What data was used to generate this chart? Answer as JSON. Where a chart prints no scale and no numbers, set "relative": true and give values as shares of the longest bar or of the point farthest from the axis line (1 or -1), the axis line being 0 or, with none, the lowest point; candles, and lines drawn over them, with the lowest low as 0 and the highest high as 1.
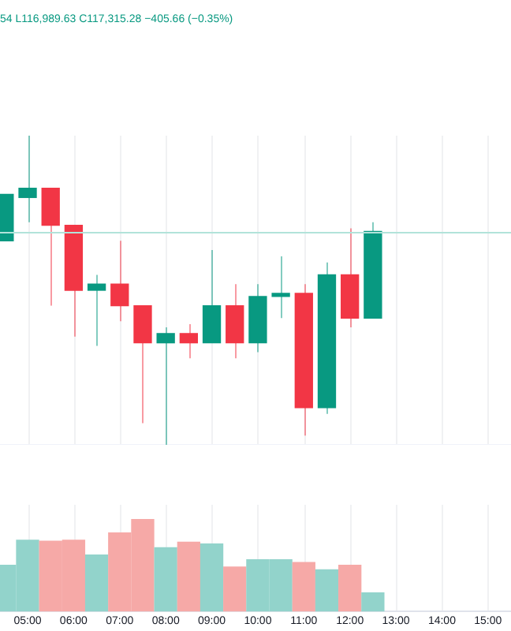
{
  "chart_data": [
    {
      "type": "candlestick",
      "relative": true,
      "annotations": [
        "54 L116,989.63 C117,315.28 −405.66 (−0.35%)"
      ],
      "x": [
        4.5,
        5,
        5.5,
        6,
        6.5,
        7,
        7.5,
        8,
        8.5,
        9,
        9.5,
        10,
        10.5,
        11,
        11.5,
        12,
        12.5
      ],
      "ohlc": [
        [
          0.66,
          0.81,
          0.66,
          0.81
        ],
        [
          0.8,
          1,
          0.72,
          0.83
        ],
        [
          0.83,
          0.83,
          0.45,
          0.71
        ],
        [
          0.71,
          0.71,
          0.35,
          0.5
        ],
        [
          0.5,
          0.55,
          0.32,
          0.52
        ],
        [
          0.52,
          0.66,
          0.4,
          0.45
        ],
        [
          0.45,
          0.45,
          0.07,
          0.33
        ],
        [
          0.33,
          0.38,
          0,
          0.36
        ],
        [
          0.36,
          0.39,
          0.28,
          0.33
        ],
        [
          0.33,
          0.63,
          0.33,
          0.45
        ],
        [
          0.45,
          0.52,
          0.28,
          0.33
        ],
        [
          0.33,
          0.52,
          0.3,
          0.48
        ],
        [
          0.48,
          0.61,
          0.41,
          0.49
        ],
        [
          0.49,
          0.52,
          0.03,
          0.12
        ],
        [
          0.12,
          0.59,
          0.1,
          0.55
        ],
        [
          0.55,
          0.7,
          0.38,
          0.41
        ],
        [
          0.41,
          0.72,
          0.41,
          0.69
        ]
      ],
      "colors": [
        "#089981",
        "#089981",
        "#f23645",
        "#f23645",
        "#089981",
        "#f23645",
        "#f23645",
        "#089981",
        "#f23645",
        "#089981",
        "#f23645",
        "#089981",
        "#089981",
        "#f23645",
        "#089981",
        "#f23645",
        "#089981"
      ],
      "xlim": [
        4.4,
        15.5
      ],
      "xticks": [
        {
          "value": 5,
          "label": null
        },
        {
          "value": 6,
          "label": null
        },
        {
          "value": 7,
          "label": null
        },
        {
          "value": 8,
          "label": null
        },
        {
          "value": 9,
          "label": null
        },
        {
          "value": 10,
          "label": null
        },
        {
          "value": 11,
          "label": null
        },
        {
          "value": 12,
          "label": null
        },
        {
          "value": 13,
          "label": null
        },
        {
          "value": 14,
          "label": null
        },
        {
          "value": 15,
          "label": null
        }
      ],
      "ref_lines": [
        {
          "axis": "y",
          "value": 0.69,
          "color": "#b2e3da"
        }
      ],
      "grid": "x",
      "tick_labels": false,
      "legend": false
    },
    {
      "type": "bar",
      "relative": true,
      "x": [
        4.5,
        5,
        5.5,
        6,
        6.5,
        7,
        7.5,
        8,
        8.5,
        9,
        9.5,
        10,
        10.5,
        11,
        11.5,
        12,
        12.5
      ],
      "values": [
        0.5,
        0.77,
        0.76,
        0.77,
        0.61,
        0.85,
        1,
        0.69,
        0.75,
        0.73,
        0.48,
        0.56,
        0.56,
        0.53,
        0.45,
        0.5,
        0.2
      ],
      "colors": [
        "#92d3cb",
        "#92d3cb",
        "#f6a9a7",
        "#f6a9a7",
        "#92d3cb",
        "#f6a9a7",
        "#f6a9a7",
        "#92d3cb",
        "#f6a9a7",
        "#92d3cb",
        "#f6a9a7",
        "#92d3cb",
        "#92d3cb",
        "#f6a9a7",
        "#92d3cb",
        "#f6a9a7",
        "#92d3cb"
      ],
      "xlim": [
        4.4,
        15.5
      ],
      "xticks": [
        {
          "value": 5,
          "label": "05:00"
        },
        {
          "value": 6,
          "label": "06:00"
        },
        {
          "value": 7,
          "label": "07:00"
        },
        {
          "value": 8,
          "label": "08:00"
        },
        {
          "value": 9,
          "label": "09:00"
        },
        {
          "value": 10,
          "label": "10:00"
        },
        {
          "value": 11,
          "label": "11:00"
        },
        {
          "value": 12,
          "label": "12:00"
        },
        {
          "value": 13,
          "label": "13:00"
        },
        {
          "value": 14,
          "label": "14:00"
        },
        {
          "value": 15,
          "label": "15:00"
        }
      ],
      "grid": "x",
      "tick_labels": "x",
      "legend": false
    }
  ]
}
